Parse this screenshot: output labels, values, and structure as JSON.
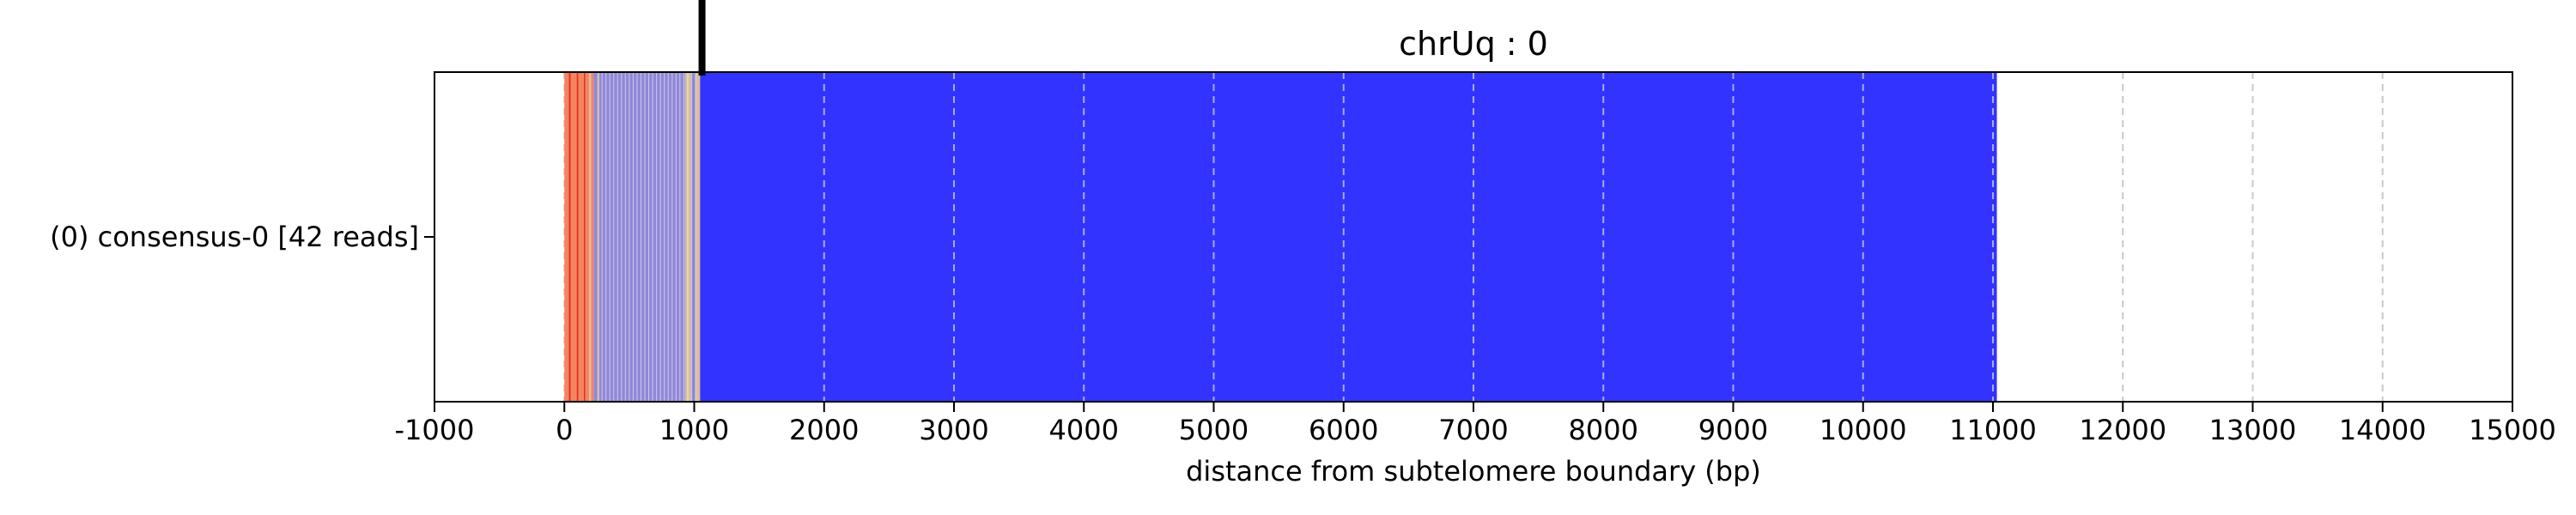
{
  "chart_data": {
    "type": "bar",
    "title": "chrUq : 0",
    "xlabel": "distance from subtelomere boundary (bp)",
    "ylabel": "",
    "xlim": [
      -1000,
      15000
    ],
    "x_ticks": [
      -1000,
      0,
      1000,
      2000,
      3000,
      4000,
      5000,
      6000,
      7000,
      8000,
      9000,
      10000,
      11000,
      12000,
      13000,
      14000,
      15000
    ],
    "x_tick_labels": [
      "-1000",
      "0",
      "1000",
      "2000",
      "3000",
      "4000",
      "5000",
      "6000",
      "7000",
      "8000",
      "9000",
      "10000",
      "11000",
      "12000",
      "13000",
      "14000",
      "15000"
    ],
    "grid": "vertical dashed at each x tick",
    "rows": [
      {
        "label": "(0) consensus-0 [42 reads]"
      }
    ],
    "boundary_marker_x": 1060,
    "colors": {
      "orange": "#f4845f",
      "red": "#e0301e",
      "lavender": "#9088d8",
      "beige": "#d8c09a",
      "blue": "#3333ff",
      "grid": "#c8c8c8"
    },
    "segments": [
      {
        "start": 0,
        "end": 35,
        "color": "orange"
      },
      {
        "start": 35,
        "end": 48,
        "color": "red"
      },
      {
        "start": 48,
        "end": 95,
        "color": "orange"
      },
      {
        "start": 95,
        "end": 108,
        "color": "red"
      },
      {
        "start": 108,
        "end": 150,
        "color": "orange"
      },
      {
        "start": 150,
        "end": 162,
        "color": "red"
      },
      {
        "start": 162,
        "end": 190,
        "color": "orange"
      },
      {
        "start": 190,
        "end": 205,
        "color": "beige"
      },
      {
        "start": 205,
        "end": 225,
        "color": "orange"
      },
      {
        "start": 225,
        "end": 255,
        "color": "lavender"
      },
      {
        "start": 255,
        "end": 268,
        "color": "beige"
      },
      {
        "start": 268,
        "end": 930,
        "color": "lavender"
      },
      {
        "start": 930,
        "end": 975,
        "color": "beige"
      },
      {
        "start": 975,
        "end": 1010,
        "color": "lavender"
      },
      {
        "start": 1010,
        "end": 1045,
        "color": "beige"
      },
      {
        "start": 1045,
        "end": 11030,
        "color": "blue"
      }
    ]
  }
}
